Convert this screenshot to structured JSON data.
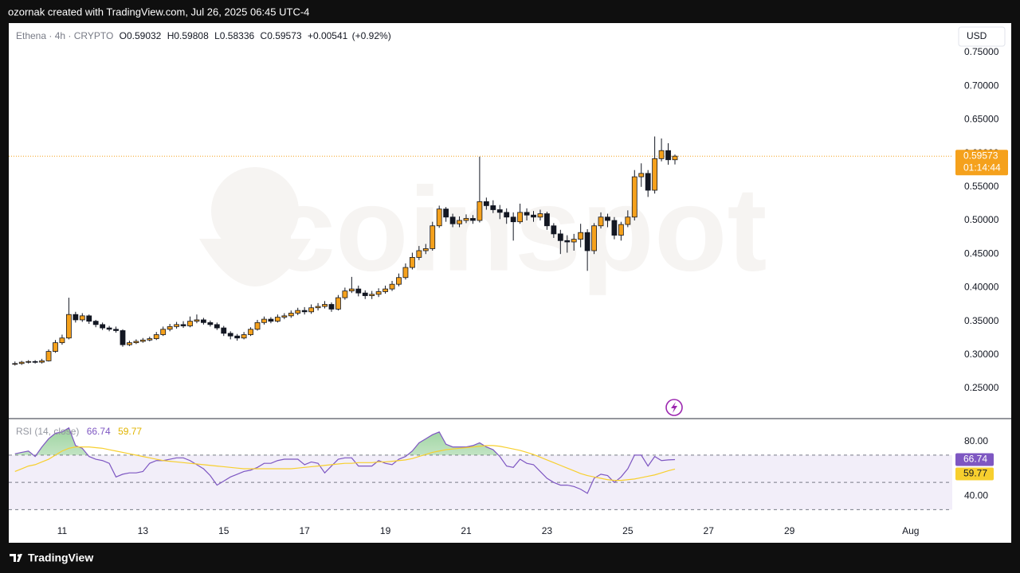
{
  "header": "ozornak created with TradingView.com, Jul 26, 2025 06:45 UTC-4",
  "footer": "TradingView",
  "chart_data": {
    "type": "candlestick",
    "symbol": "Ethena · 4h · CRYPTO",
    "ohlc_letters": [
      "O",
      "H",
      "L",
      "C"
    ],
    "change": "+0.00541",
    "change_pct": "(+0.92%)",
    "currency": "USD",
    "countdown": "01:14:44",
    "watermark": "coinspot",
    "xlim": [
      9.68,
      33.03
    ],
    "xticks": [
      {
        "value": 11,
        "label": "11"
      },
      {
        "value": 13,
        "label": "13"
      },
      {
        "value": 15,
        "label": "15"
      },
      {
        "value": 17,
        "label": "17"
      },
      {
        "value": 19,
        "label": "19"
      },
      {
        "value": 21,
        "label": "21"
      },
      {
        "value": 23,
        "label": "23"
      },
      {
        "value": 25,
        "label": "25"
      },
      {
        "value": 27,
        "label": "27"
      },
      {
        "value": 29,
        "label": "29"
      },
      {
        "value": 32,
        "label": "Aug"
      }
    ],
    "ylim": [
      0.2062,
      0.7938
    ],
    "yticks": [
      {
        "value": 0.25,
        "label": "0.25000"
      },
      {
        "value": 0.3,
        "label": "0.30000"
      },
      {
        "value": 0.35,
        "label": "0.35000"
      },
      {
        "value": 0.4,
        "label": "0.40000"
      },
      {
        "value": 0.45,
        "label": "0.45000"
      },
      {
        "value": 0.5,
        "label": "0.50000"
      },
      {
        "value": 0.55,
        "label": "0.55000"
      },
      {
        "value": 0.6,
        "label": "0.60000"
      },
      {
        "value": 0.65,
        "label": "0.65000"
      },
      {
        "value": 0.7,
        "label": "0.70000"
      },
      {
        "value": 0.75,
        "label": "0.75000"
      }
    ],
    "x": [
      9.8333,
      10,
      10.1667,
      10.3333,
      10.5,
      10.6667,
      10.8333,
      11,
      11.1667,
      11.3333,
      11.5,
      11.6667,
      11.8333,
      12,
      12.1667,
      12.3333,
      12.5,
      12.6667,
      12.8333,
      13,
      13.1667,
      13.3333,
      13.5,
      13.6667,
      13.8333,
      14,
      14.1667,
      14.3333,
      14.5,
      14.6667,
      14.8333,
      15,
      15.1667,
      15.3333,
      15.5,
      15.6667,
      15.8333,
      16,
      16.1667,
      16.3333,
      16.5,
      16.6667,
      16.8333,
      17,
      17.1667,
      17.3333,
      17.5,
      17.6667,
      17.8333,
      18,
      18.1667,
      18.3333,
      18.5,
      18.6667,
      18.8333,
      19,
      19.1667,
      19.3333,
      19.5,
      19.6667,
      19.8333,
      20,
      20.1667,
      20.3333,
      20.5,
      20.6667,
      20.8333,
      21,
      21.1667,
      21.3333,
      21.5,
      21.6667,
      21.8333,
      22,
      22.1667,
      22.3333,
      22.5,
      22.6667,
      22.8333,
      23,
      23.1667,
      23.3333,
      23.5,
      23.6667,
      23.8333,
      24,
      24.1667,
      24.3333,
      24.5,
      24.6667,
      24.8333,
      25,
      25.1667,
      25.3333,
      25.5,
      25.6667,
      25.8333,
      26,
      26.1667
    ],
    "series": [
      {
        "name": "Ethena",
        "up_color": "#f5a11c",
        "down_color": "#131722",
        "wick_color": "#131722",
        "open": [
          0.286,
          0.287,
          0.289,
          0.29,
          0.289,
          0.291,
          0.305,
          0.318,
          0.325,
          0.36,
          0.352,
          0.358,
          0.35,
          0.345,
          0.34,
          0.338,
          0.336,
          0.315,
          0.318,
          0.32,
          0.322,
          0.324,
          0.33,
          0.338,
          0.342,
          0.345,
          0.343,
          0.35,
          0.352,
          0.348,
          0.345,
          0.34,
          0.332,
          0.328,
          0.325,
          0.33,
          0.338,
          0.348,
          0.353,
          0.35,
          0.356,
          0.358,
          0.362,
          0.366,
          0.364,
          0.37,
          0.372,
          0.375,
          0.368,
          0.385,
          0.395,
          0.398,
          0.392,
          0.388,
          0.39,
          0.394,
          0.398,
          0.405,
          0.415,
          0.43,
          0.445,
          0.455,
          0.458,
          0.492,
          0.517,
          0.505,
          0.495,
          0.5,
          0.503,
          0.5,
          0.528,
          0.522,
          0.516,
          0.512,
          0.505,
          0.498,
          0.512,
          0.508,
          0.505,
          0.51,
          0.492,
          0.48,
          0.47,
          0.468,
          0.472,
          0.482,
          0.455,
          0.492,
          0.505,
          0.5,
          0.478,
          0.494,
          0.505,
          0.565,
          0.57,
          0.545,
          0.592,
          0.604,
          0.59032
        ],
        "high": [
          0.29,
          0.291,
          0.292,
          0.292,
          0.294,
          0.308,
          0.322,
          0.33,
          0.385,
          0.364,
          0.362,
          0.36,
          0.352,
          0.348,
          0.343,
          0.342,
          0.338,
          0.321,
          0.323,
          0.325,
          0.327,
          0.334,
          0.342,
          0.346,
          0.349,
          0.35,
          0.357,
          0.36,
          0.355,
          0.351,
          0.348,
          0.343,
          0.335,
          0.331,
          0.334,
          0.341,
          0.352,
          0.357,
          0.356,
          0.36,
          0.362,
          0.366,
          0.37,
          0.371,
          0.375,
          0.377,
          0.38,
          0.378,
          0.389,
          0.4,
          0.416,
          0.403,
          0.396,
          0.395,
          0.399,
          0.403,
          0.41,
          0.421,
          0.436,
          0.452,
          0.462,
          0.465,
          0.498,
          0.522,
          0.52,
          0.51,
          0.506,
          0.509,
          0.508,
          0.595,
          0.534,
          0.53,
          0.523,
          0.518,
          0.512,
          0.525,
          0.518,
          0.514,
          0.516,
          0.513,
          0.496,
          0.486,
          0.478,
          0.48,
          0.495,
          0.487,
          0.496,
          0.512,
          0.51,
          0.505,
          0.498,
          0.515,
          0.575,
          0.585,
          0.575,
          0.625,
          0.622,
          0.615,
          0.59808
        ],
        "low": [
          0.284,
          0.285,
          0.287,
          0.287,
          0.287,
          0.29,
          0.303,
          0.315,
          0.323,
          0.348,
          0.349,
          0.346,
          0.341,
          0.337,
          0.335,
          0.333,
          0.312,
          0.313,
          0.316,
          0.318,
          0.32,
          0.322,
          0.328,
          0.335,
          0.339,
          0.34,
          0.341,
          0.347,
          0.345,
          0.342,
          0.337,
          0.328,
          0.323,
          0.321,
          0.323,
          0.328,
          0.336,
          0.345,
          0.347,
          0.348,
          0.353,
          0.355,
          0.359,
          0.36,
          0.361,
          0.366,
          0.369,
          0.364,
          0.366,
          0.382,
          0.392,
          0.387,
          0.383,
          0.383,
          0.386,
          0.391,
          0.395,
          0.402,
          0.412,
          0.427,
          0.441,
          0.45,
          0.455,
          0.489,
          0.498,
          0.49,
          0.49,
          0.496,
          0.495,
          0.497,
          0.516,
          0.511,
          0.502,
          0.495,
          0.47,
          0.495,
          0.5,
          0.498,
          0.5,
          0.486,
          0.474,
          0.45,
          0.452,
          0.455,
          0.46,
          0.425,
          0.45,
          0.488,
          0.49,
          0.472,
          0.47,
          0.49,
          0.5,
          0.55,
          0.535,
          0.54,
          0.588,
          0.583,
          0.58336
        ],
        "close": [
          0.287,
          0.289,
          0.29,
          0.289,
          0.291,
          0.305,
          0.318,
          0.325,
          0.36,
          0.352,
          0.358,
          0.35,
          0.345,
          0.34,
          0.338,
          0.336,
          0.315,
          0.318,
          0.32,
          0.322,
          0.324,
          0.33,
          0.338,
          0.342,
          0.345,
          0.343,
          0.35,
          0.352,
          0.348,
          0.345,
          0.34,
          0.332,
          0.328,
          0.325,
          0.33,
          0.338,
          0.348,
          0.353,
          0.35,
          0.356,
          0.358,
          0.362,
          0.366,
          0.364,
          0.37,
          0.372,
          0.375,
          0.368,
          0.385,
          0.395,
          0.398,
          0.392,
          0.388,
          0.39,
          0.394,
          0.398,
          0.405,
          0.415,
          0.43,
          0.445,
          0.455,
          0.458,
          0.492,
          0.517,
          0.505,
          0.495,
          0.5,
          0.503,
          0.5,
          0.528,
          0.522,
          0.516,
          0.512,
          0.505,
          0.498,
          0.512,
          0.508,
          0.505,
          0.51,
          0.492,
          0.48,
          0.47,
          0.468,
          0.472,
          0.482,
          0.455,
          0.492,
          0.505,
          0.5,
          0.478,
          0.494,
          0.505,
          0.565,
          0.57,
          0.545,
          0.592,
          0.604,
          0.59032,
          0.59573
        ]
      }
    ],
    "rsi": {
      "label": "RSI (14, close)",
      "ylim": [
        21.5,
        96.2
      ],
      "yticks": [
        {
          "value": 80,
          "label": "80.00"
        },
        {
          "value": 40,
          "label": "40.00"
        }
      ],
      "bands": [
        30,
        50,
        70
      ],
      "band_color": "#7e57c2",
      "overbought_color": "#4caf50",
      "series": [
        {
          "name": "RSI",
          "color": "#7e57c2",
          "values": [
            71,
            72,
            73,
            69,
            76,
            82,
            86,
            87,
            90,
            77,
            75,
            69,
            67,
            66,
            64,
            54,
            56,
            57,
            57,
            58,
            64,
            66,
            66,
            67,
            68,
            68,
            66,
            63,
            60,
            55,
            48,
            51,
            54,
            56,
            58,
            59,
            61,
            64,
            64,
            66,
            67,
            67,
            67,
            63,
            65,
            64,
            57,
            62,
            67,
            68,
            68,
            62,
            62,
            62,
            66,
            64,
            63,
            67,
            69,
            73,
            79,
            82,
            85,
            87,
            78,
            76,
            76,
            76,
            77,
            79,
            76,
            74,
            69,
            62,
            61,
            67,
            64,
            63,
            58,
            53,
            50,
            48,
            48,
            47,
            45,
            42,
            53,
            56,
            55,
            50,
            54,
            60,
            70,
            70,
            62,
            69,
            66,
            66.5,
            66.74
          ]
        },
        {
          "name": "RSI MA",
          "color": "#f7cf2e",
          "values": [
            58,
            60,
            62,
            63,
            65,
            67,
            70,
            73,
            75,
            76,
            76,
            76,
            75.5,
            75,
            74,
            73,
            72,
            71,
            70,
            69,
            68,
            67,
            66,
            65.5,
            65,
            64.5,
            64,
            63.5,
            63,
            62.5,
            62,
            61.5,
            61,
            60.5,
            60,
            60,
            60,
            60,
            60,
            60,
            60,
            60,
            60.5,
            61,
            61.5,
            62,
            62.5,
            63,
            63.5,
            64,
            64,
            64.5,
            64.5,
            64.5,
            65,
            65,
            65.5,
            66,
            66.5,
            67.5,
            69,
            70.5,
            72,
            73,
            74,
            74.5,
            75,
            75.5,
            76,
            76.5,
            77,
            77,
            76.5,
            75.5,
            74.5,
            73.5,
            72,
            70.5,
            68.5,
            66.5,
            64.5,
            62.5,
            60.5,
            58.5,
            56.5,
            55,
            54,
            53,
            52,
            51.5,
            51.5,
            52,
            52.5,
            53.5,
            54.5,
            55.5,
            57,
            58.5,
            59.77
          ]
        }
      ]
    }
  }
}
